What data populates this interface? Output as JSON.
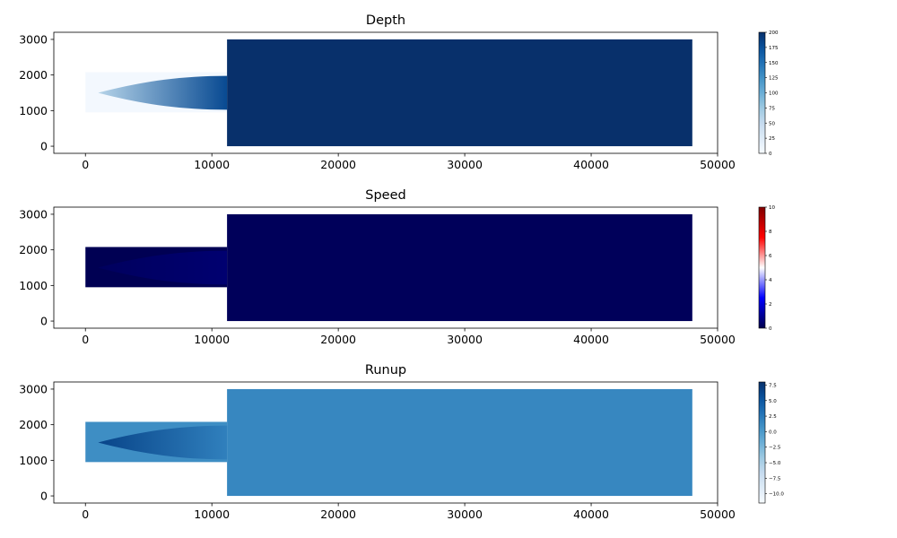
{
  "chart_data": [
    {
      "type": "heatmap",
      "title": "Depth",
      "xlim": [
        -2500,
        50000
      ],
      "ylim": [
        -200,
        3200
      ],
      "x_ticks": [
        0,
        10000,
        20000,
        30000,
        40000,
        50000
      ],
      "x_tick_labels": [
        "0",
        "10000",
        "20000",
        "30000",
        "40000",
        "50000"
      ],
      "y_ticks": [
        0,
        1000,
        2000,
        3000
      ],
      "y_tick_labels": [
        "0",
        "1000",
        "2000",
        "3000"
      ],
      "colormap": "Blues",
      "colorbar": {
        "min": 0,
        "max": 200,
        "ticks": [
          0,
          25,
          50,
          75,
          100,
          125,
          150,
          175,
          200
        ],
        "tick_labels": [
          "0",
          "25",
          "50",
          "75",
          "100",
          "125",
          "150",
          "175",
          "200"
        ]
      },
      "regions": [
        {
          "name": "river_channel",
          "x_range": [
            0,
            11200
          ],
          "y_range": [
            950,
            2080
          ],
          "value": 4
        },
        {
          "name": "river_plume",
          "x_range": [
            1000,
            11200
          ],
          "y_center": 1500,
          "value_at_mouth": 180,
          "value_at_tip": 60
        },
        {
          "name": "ocean",
          "x_range": [
            11200,
            48000
          ],
          "y_range": [
            0,
            3000
          ],
          "value": 200
        }
      ]
    },
    {
      "type": "heatmap",
      "title": "Speed",
      "xlim": [
        -2500,
        50000
      ],
      "ylim": [
        -200,
        3200
      ],
      "x_ticks": [
        0,
        10000,
        20000,
        30000,
        40000,
        50000
      ],
      "x_tick_labels": [
        "0",
        "10000",
        "20000",
        "30000",
        "40000",
        "50000"
      ],
      "y_ticks": [
        0,
        1000,
        2000,
        3000
      ],
      "y_tick_labels": [
        "0",
        "1000",
        "2000",
        "3000"
      ],
      "colormap": "seismic",
      "colorbar": {
        "min": 0,
        "max": 10,
        "ticks": [
          0,
          2,
          4,
          6,
          8,
          10
        ],
        "tick_labels": [
          "0",
          "2",
          "4",
          "6",
          "8",
          "10"
        ]
      },
      "regions": [
        {
          "name": "river_channel",
          "x_range": [
            0,
            11200
          ],
          "y_range": [
            950,
            2080
          ],
          "value": 0.1
        },
        {
          "name": "river_plume",
          "x_range": [
            1000,
            11200
          ],
          "y_center": 1500,
          "value_at_mouth": 0.5,
          "value_at_tip": 0.25
        },
        {
          "name": "ocean",
          "x_range": [
            11200,
            48000
          ],
          "y_range": [
            0,
            3000
          ],
          "value": 0.2
        }
      ]
    },
    {
      "type": "heatmap",
      "title": "Runup",
      "xlim": [
        -2500,
        50000
      ],
      "ylim": [
        -200,
        3200
      ],
      "x_ticks": [
        0,
        10000,
        20000,
        30000,
        40000,
        50000
      ],
      "x_tick_labels": [
        "0",
        "10000",
        "20000",
        "30000",
        "40000",
        "50000"
      ],
      "y_ticks": [
        0,
        1000,
        2000,
        3000
      ],
      "y_tick_labels": [
        "0",
        "1000",
        "2000",
        "3000"
      ],
      "colormap": "Blues",
      "colorbar": {
        "min": -11.5,
        "max": 8.0,
        "ticks": [
          7.5,
          5.0,
          2.5,
          0.0,
          -2.5,
          -5.0,
          -7.5,
          -10.0
        ],
        "tick_labels": [
          "7.5",
          "5.0",
          "2.5",
          "0.0",
          "−2.5",
          "−5.0",
          "−7.5",
          "−10.0"
        ]
      },
      "regions": [
        {
          "name": "river_channel",
          "x_range": [
            0,
            11200
          ],
          "y_range": [
            950,
            2080
          ],
          "value": 1.0
        },
        {
          "name": "river_plume",
          "x_range": [
            1000,
            11200
          ],
          "y_center": 1500,
          "value_at_mouth": 2.0,
          "value_at_tip": 6.5
        },
        {
          "name": "ocean",
          "x_range": [
            11200,
            48000
          ],
          "y_range": [
            0,
            3000
          ],
          "value": 1.5
        }
      ]
    }
  ]
}
